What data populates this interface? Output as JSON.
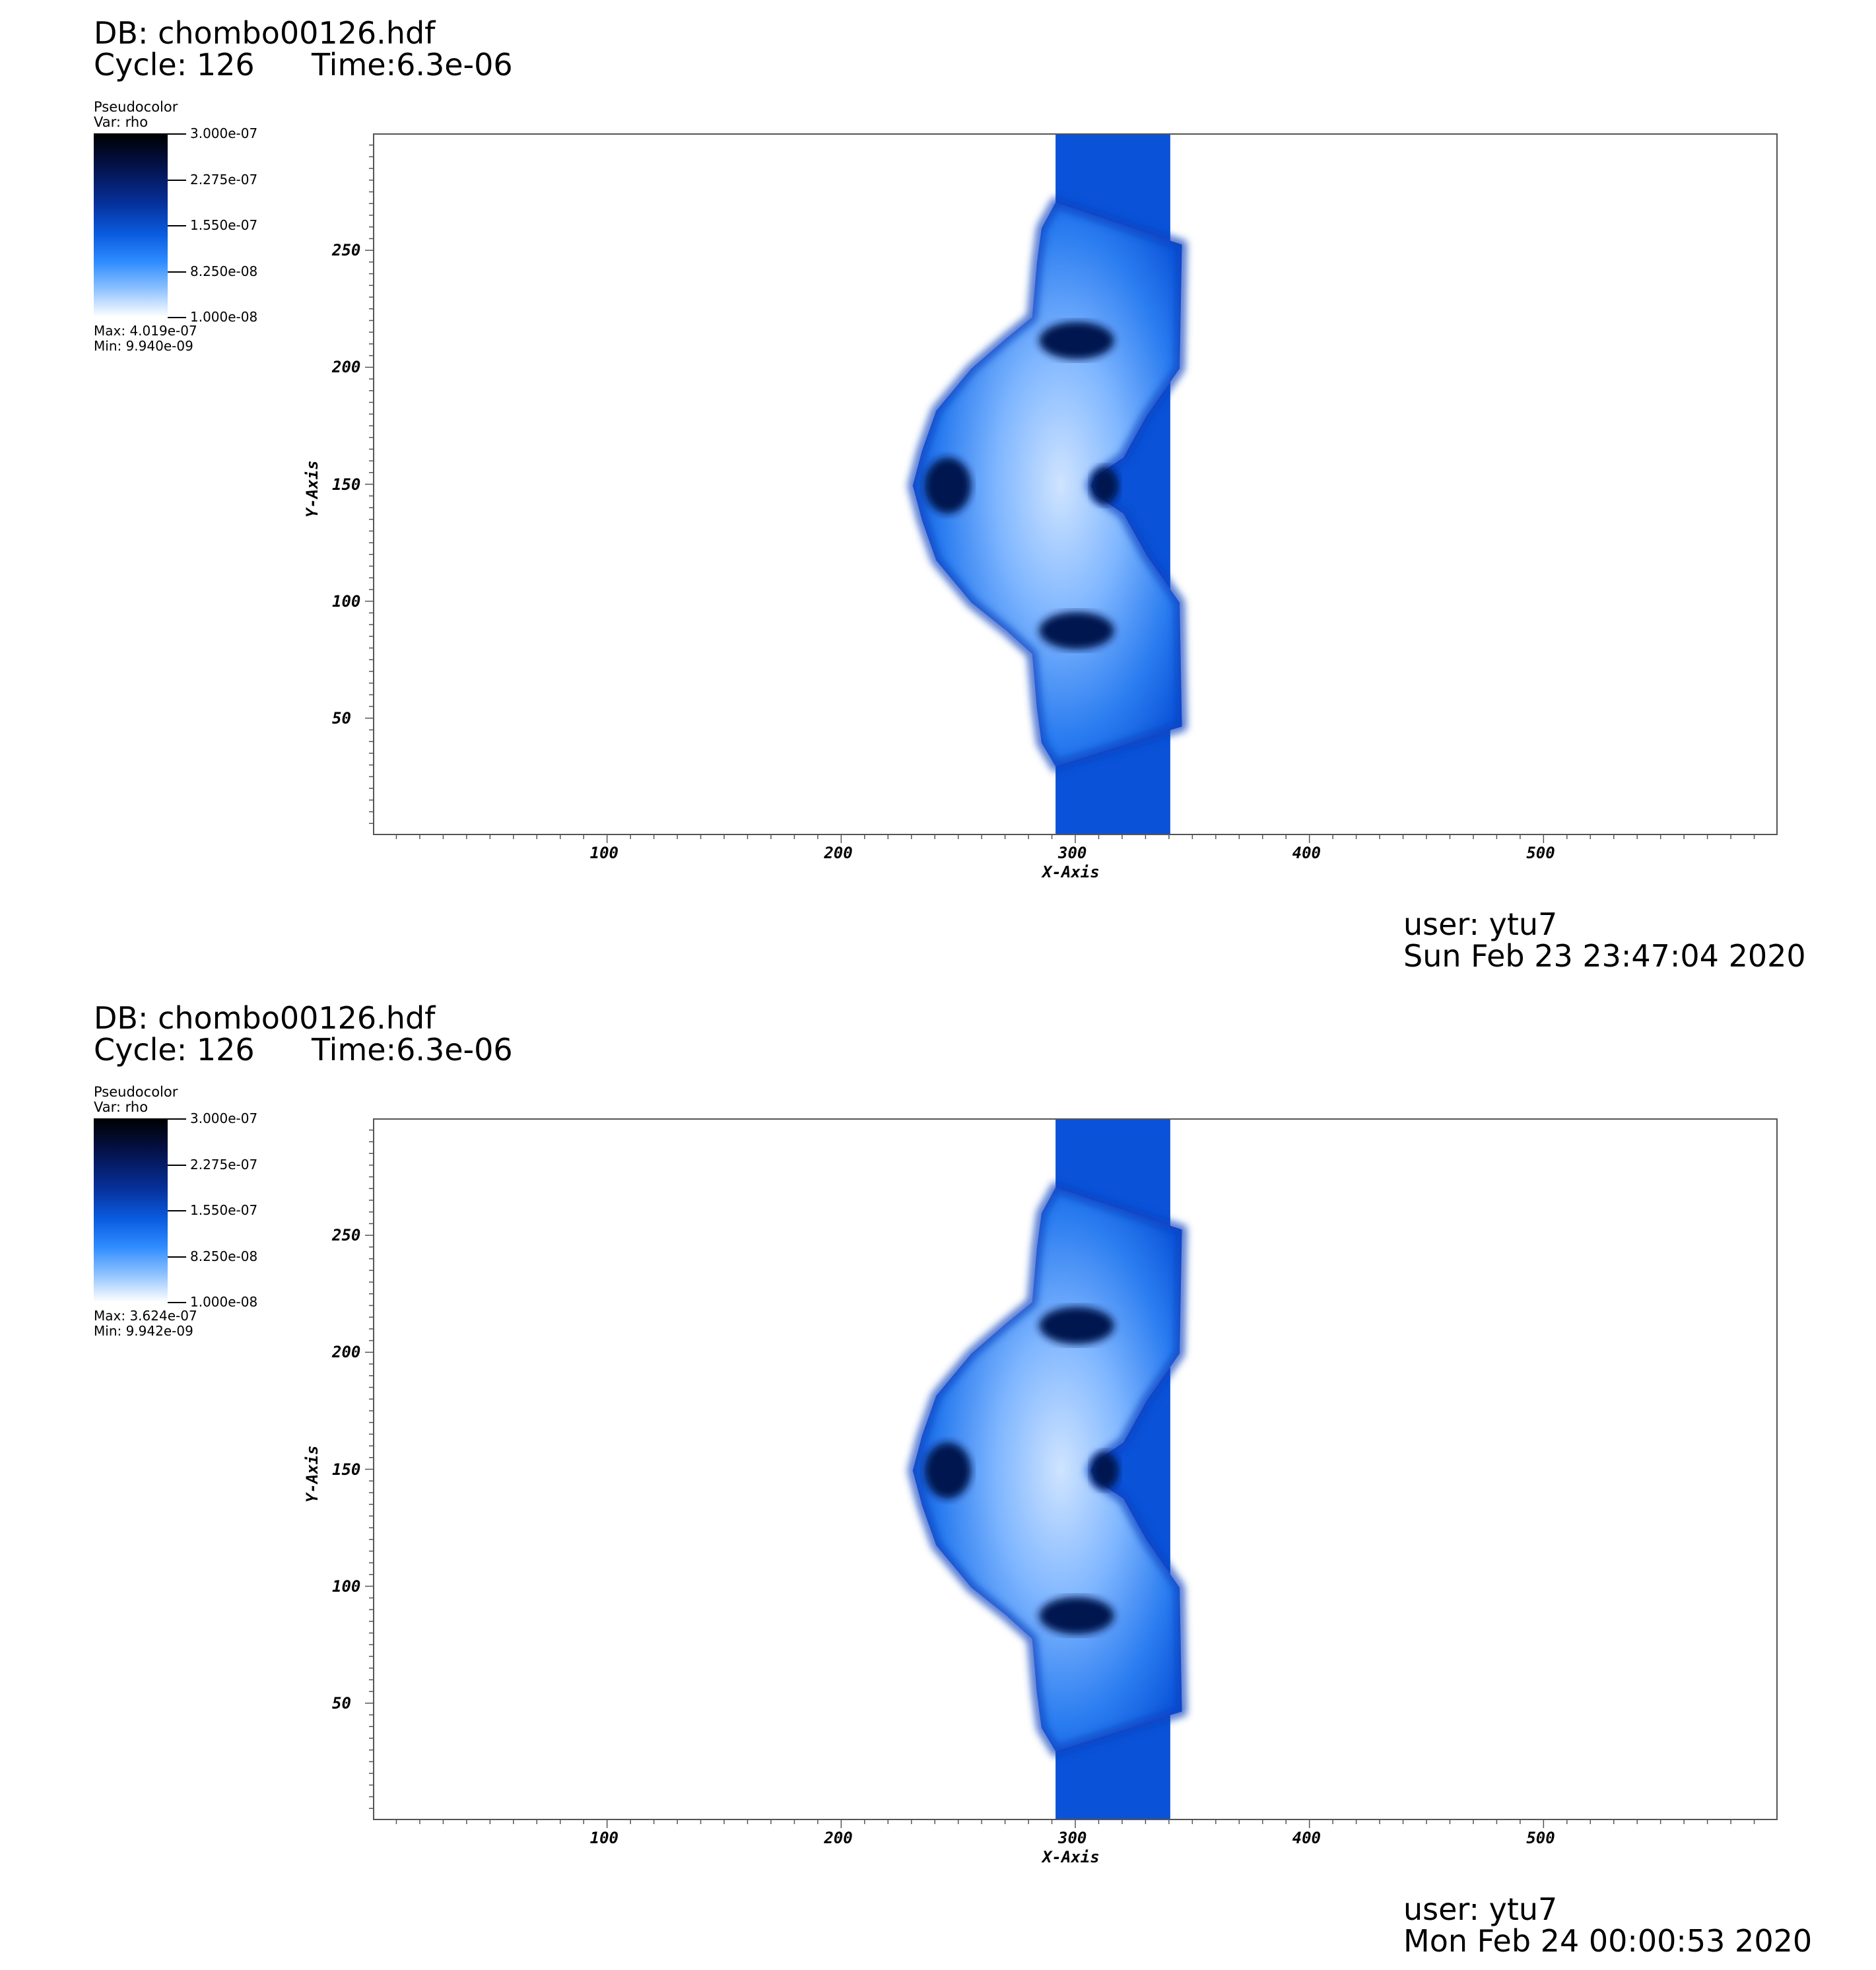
{
  "panels": [
    {
      "db": "DB: chombo00126.hdf",
      "cycle": "Cycle: 126",
      "time": "Time:6.3e-06",
      "legend": {
        "title": "Pseudocolor",
        "var": "Var: rho",
        "ticks": [
          "3.000e-07",
          "2.275e-07",
          "1.550e-07",
          "8.250e-08",
          "1.000e-08"
        ],
        "max": "Max:  4.019e-07",
        "min": "Min:  9.940e-09"
      },
      "user": "user: ytu7",
      "date": "Sun Feb 23 23:47:04 2020"
    },
    {
      "db": "DB: chombo00126.hdf",
      "cycle": "Cycle: 126",
      "time": "Time:6.3e-06",
      "legend": {
        "title": "Pseudocolor",
        "var": "Var: rho",
        "ticks": [
          "3.000e-07",
          "2.275e-07",
          "1.550e-07",
          "8.250e-08",
          "1.000e-08"
        ],
        "max": "Max:  3.624e-07",
        "min": "Min:  9.942e-09"
      },
      "user": "user: ytu7",
      "date": "Mon Feb 24 00:00:53 2020"
    }
  ],
  "chart_data": [
    {
      "type": "heatmap",
      "xlabel": "X-Axis",
      "ylabel": "Y-Axis",
      "x_ticks": [
        100,
        200,
        300,
        400,
        500
      ],
      "y_ticks": [
        50,
        100,
        150,
        200,
        250
      ],
      "xlim": [
        0,
        600
      ],
      "ylim": [
        0,
        300
      ],
      "colorbar_range": [
        1e-08,
        3e-07
      ],
      "max": 4.019e-07,
      "min": 9.94e-09,
      "colors": {
        "low": "#ffffff",
        "mid": "#0a5ce0",
        "high": "#000000",
        "band": "#0a52d8"
      }
    },
    {
      "type": "heatmap",
      "xlabel": "X-Axis",
      "ylabel": "Y-Axis",
      "x_ticks": [
        100,
        200,
        300,
        400,
        500
      ],
      "y_ticks": [
        50,
        100,
        150,
        200,
        250
      ],
      "xlim": [
        0,
        600
      ],
      "ylim": [
        0,
        300
      ],
      "colorbar_range": [
        1e-08,
        3e-07
      ],
      "max": 3.624e-07,
      "min": 9.942e-09,
      "colors": {
        "low": "#ffffff",
        "mid": "#0a5ce0",
        "high": "#000000",
        "band": "#0a52d8"
      }
    }
  ]
}
